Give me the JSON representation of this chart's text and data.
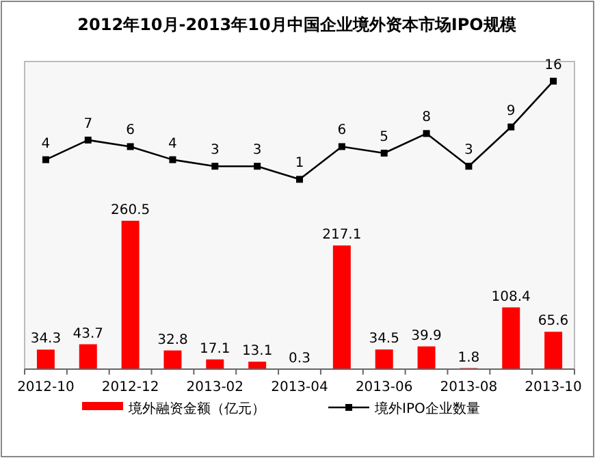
{
  "chart_data": {
    "type": "bar",
    "title": "2012年10月-2013年10月中国企业境外资本市场IPO规模",
    "categories": [
      "2012-10",
      null,
      "2012-12",
      null,
      "2013-02",
      null,
      "2013-04",
      null,
      "2013-06",
      null,
      "2013-08",
      null,
      "2013-10"
    ],
    "series": [
      {
        "name": "境外融资金额（亿元）",
        "type": "bar",
        "color": "#ff0000",
        "values": [
          34.3,
          43.7,
          260.5,
          32.8,
          17.1,
          13.1,
          0.3,
          217.1,
          34.5,
          39.9,
          1.8,
          108.4,
          65.6
        ]
      },
      {
        "name": "境外IPO企业数量",
        "type": "line",
        "axis": "y2",
        "color": "#000000",
        "marker": "square",
        "values": [
          4,
          7,
          6,
          4,
          3,
          3,
          1,
          6,
          5,
          8,
          3,
          9,
          16
        ]
      }
    ],
    "ylim": [
      0,
      540
    ],
    "y2lim": [
      -28,
      19
    ],
    "tick_labels": "x",
    "data_labels": true,
    "legend": "bottom",
    "grid": false
  }
}
